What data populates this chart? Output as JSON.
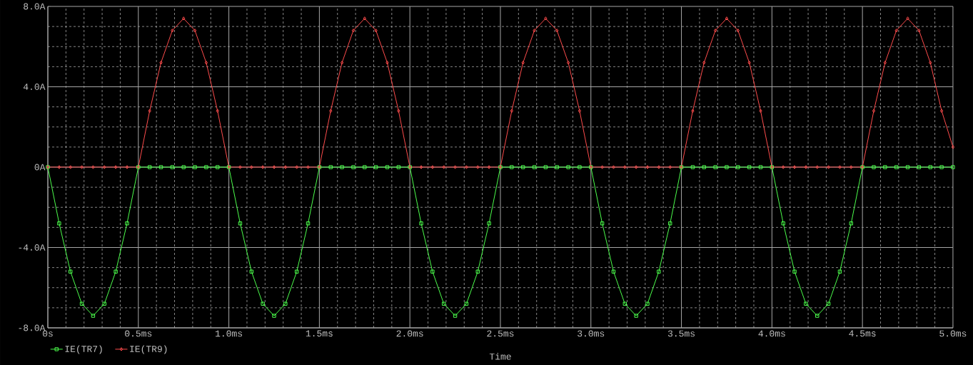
{
  "chart_data": {
    "type": "line",
    "xlabel": "Time",
    "x": [
      0,
      0.0625,
      0.125,
      0.1875,
      0.25,
      0.3125,
      0.375,
      0.4375,
      0.5,
      0.5625,
      0.625,
      0.6875,
      0.75,
      0.8125,
      0.875,
      0.9375,
      1,
      1.0625,
      1.125,
      1.1875,
      1.25,
      1.3125,
      1.375,
      1.4375,
      1.5,
      1.5625,
      1.625,
      1.6875,
      1.75,
      1.8125,
      1.875,
      1.9375,
      2,
      2.0625,
      2.125,
      2.1875,
      2.25,
      2.3125,
      2.375,
      2.4375,
      2.5,
      2.5625,
      2.625,
      2.6875,
      2.75,
      2.8125,
      2.875,
      2.9375,
      3,
      3.0625,
      3.125,
      3.1875,
      3.25,
      3.3125,
      3.375,
      3.4375,
      3.5,
      3.5625,
      3.625,
      3.6875,
      3.75,
      3.8125,
      3.875,
      3.9375,
      4,
      4.0625,
      4.125,
      4.1875,
      4.25,
      4.3125,
      4.375,
      4.4375,
      4.5,
      4.5625,
      4.625,
      4.6875,
      4.75,
      4.8125,
      4.875,
      4.9375,
      5
    ],
    "series": [
      {
        "name": "IE(TR7)",
        "color": "#4cff4c",
        "marker": "square",
        "values": [
          0,
          -2.8,
          -5.2,
          -6.8,
          -7.4,
          -6.8,
          -5.2,
          -2.8,
          0,
          0,
          0,
          0,
          0,
          0,
          0,
          0,
          0,
          -2.8,
          -5.2,
          -6.8,
          -7.4,
          -6.8,
          -5.2,
          -2.8,
          0,
          0,
          0,
          0,
          0,
          0,
          0,
          0,
          0,
          -2.8,
          -5.2,
          -6.8,
          -7.4,
          -6.8,
          -5.2,
          -2.8,
          0,
          0,
          0,
          0,
          0,
          0,
          0,
          0,
          0,
          -2.8,
          -5.2,
          -6.8,
          -7.4,
          -6.8,
          -5.2,
          -2.8,
          0,
          0,
          0,
          0,
          0,
          0,
          0,
          0,
          0,
          -2.8,
          -5.2,
          -6.8,
          -7.4,
          -6.8,
          -5.2,
          -2.8,
          0,
          0,
          0,
          0,
          0,
          0,
          0,
          0,
          0
        ]
      },
      {
        "name": "IE(TR9)",
        "color": "#ff4c4c",
        "marker": "diamond",
        "values": [
          0,
          0,
          0,
          0,
          0,
          0,
          0,
          0,
          0,
          2.8,
          5.2,
          6.8,
          7.4,
          6.8,
          5.2,
          2.8,
          0,
          0,
          0,
          0,
          0,
          0,
          0,
          0,
          0,
          2.8,
          5.2,
          6.8,
          7.4,
          6.8,
          5.2,
          2.8,
          0,
          0,
          0,
          0,
          0,
          0,
          0,
          0,
          0,
          2.8,
          5.2,
          6.8,
          7.4,
          6.8,
          5.2,
          2.8,
          0,
          0,
          0,
          0,
          0,
          0,
          0,
          0,
          0,
          2.8,
          5.2,
          6.8,
          7.4,
          6.8,
          5.2,
          2.8,
          0,
          0,
          0,
          0,
          0,
          0,
          0,
          0,
          0,
          2.8,
          5.2,
          6.8,
          7.4,
          6.8,
          5.2,
          2.8,
          1.0
        ]
      }
    ],
    "xlim": [
      0,
      5
    ],
    "ylim": [
      -8,
      8
    ],
    "xticks": [
      {
        "value": 0,
        "label": "0s"
      },
      {
        "value": 0.5,
        "label": "0.5ms"
      },
      {
        "value": 1,
        "label": "1.0ms"
      },
      {
        "value": 1.5,
        "label": "1.5ms"
      },
      {
        "value": 2,
        "label": "2.0ms"
      },
      {
        "value": 2.5,
        "label": "2.5ms"
      },
      {
        "value": 3,
        "label": "3.0ms"
      },
      {
        "value": 3.5,
        "label": "3.5ms"
      },
      {
        "value": 4,
        "label": "4.0ms"
      },
      {
        "value": 4.5,
        "label": "4.5ms"
      },
      {
        "value": 5,
        "label": "5.0ms"
      }
    ],
    "yticks": [
      {
        "value": -8,
        "label": "-8.0A"
      },
      {
        "value": -4,
        "label": "-4.0A"
      },
      {
        "value": 0,
        "label": "0A"
      },
      {
        "value": 4,
        "label": "4.0A"
      },
      {
        "value": 8,
        "label": "8.0A"
      }
    ],
    "grid": true,
    "legend": "bottom",
    "line_style": "solid"
  }
}
